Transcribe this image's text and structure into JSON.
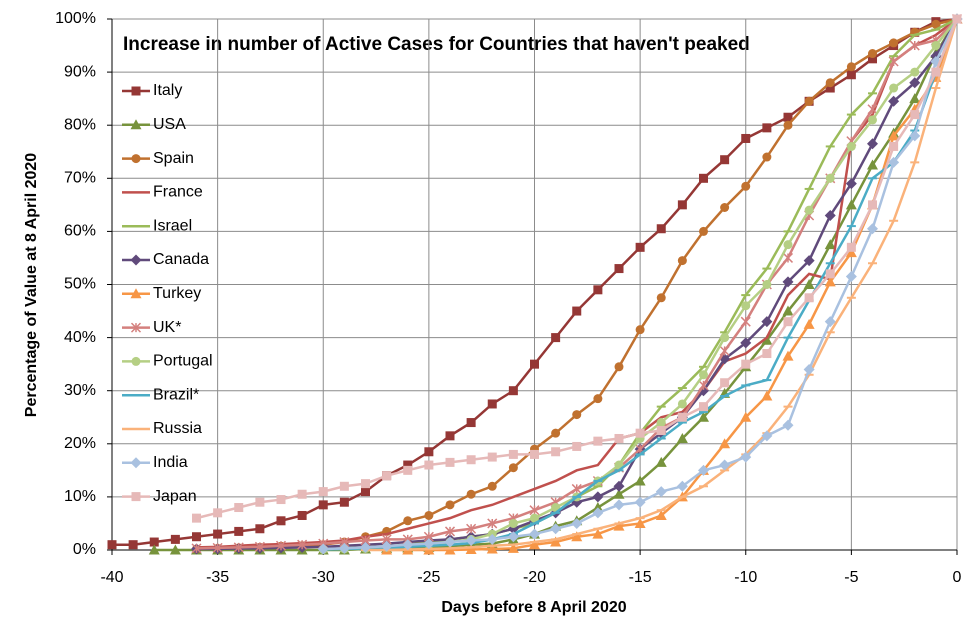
{
  "chart_data": {
    "type": "line",
    "title": "Increase in number of Active Cases for Countries that haven't peaked",
    "x_label": "Days before 8 April 2020",
    "y_label": "Percentage of Value at 8 April 2020",
    "grid": true,
    "legend": "upper left",
    "xlim": [
      -40,
      0
    ],
    "xticks": [
      -40,
      -35,
      -30,
      -25,
      -20,
      -15,
      -10,
      -5,
      0
    ],
    "ylim": [
      0,
      100
    ],
    "yticks": [
      {
        "value": 0,
        "label": "0%"
      },
      {
        "value": 10,
        "label": "10%"
      },
      {
        "value": 20,
        "label": "20%"
      },
      {
        "value": 30,
        "label": "30%"
      },
      {
        "value": 40,
        "label": "40%"
      },
      {
        "value": 50,
        "label": "50%"
      },
      {
        "value": 60,
        "label": "60%"
      },
      {
        "value": 70,
        "label": "70%"
      },
      {
        "value": 80,
        "label": "80%"
      },
      {
        "value": 90,
        "label": "90%"
      },
      {
        "value": 100,
        "label": "100%"
      }
    ],
    "x": [
      -40,
      -39,
      -38,
      -37,
      -36,
      -35,
      -34,
      -33,
      -32,
      -31,
      -30,
      -29,
      -28,
      -27,
      -26,
      -25,
      -24,
      -23,
      -22,
      -21,
      -20,
      -19,
      -18,
      -17,
      -16,
      -15,
      -14,
      -13,
      -12,
      -11,
      -10,
      -9,
      -8,
      -7,
      -6,
      -5,
      -4,
      -3,
      -2,
      -1,
      0
    ],
    "series": [
      {
        "name": "Italy",
        "color": "#953735",
        "marker": "square",
        "values": [
          1,
          1,
          1.5,
          2,
          2.5,
          3,
          3.5,
          4,
          5.5,
          6.5,
          8.5,
          9,
          11,
          14,
          16,
          18.5,
          21.5,
          24,
          27.5,
          30,
          35,
          40,
          45,
          49,
          53,
          57,
          60.5,
          65,
          70,
          73.5,
          77.5,
          79.5,
          81.5,
          84.5,
          87,
          89.5,
          92.5,
          95,
          97.5,
          99.5,
          100
        ]
      },
      {
        "name": "USA",
        "color": "#77933c",
        "marker": "triangle",
        "values": [
          null,
          null,
          0,
          0,
          0,
          0,
          0,
          0,
          0,
          0,
          0,
          0,
          0.2,
          0.3,
          0.4,
          0.5,
          0.7,
          1,
          1.2,
          2,
          3,
          4.5,
          5.5,
          8,
          10.5,
          13,
          16.5,
          21,
          25,
          29.5,
          34.5,
          39.5,
          45,
          50,
          57.5,
          65,
          72.5,
          78.5,
          85,
          93.5,
          100
        ]
      },
      {
        "name": "Spain",
        "color": "#c0712f",
        "marker": "circle",
        "values": [
          null,
          null,
          null,
          null,
          0.2,
          0.3,
          0.4,
          0.5,
          0.7,
          0.8,
          1,
          1.5,
          2.5,
          3.5,
          5.5,
          6.5,
          8.5,
          10.5,
          12,
          15.5,
          19,
          22,
          25.5,
          28.5,
          34.5,
          41.5,
          47.5,
          54.5,
          60,
          64.5,
          68.5,
          74,
          80,
          84.5,
          88,
          91,
          93.5,
          95.5,
          97.5,
          99,
          100
        ]
      },
      {
        "name": "France",
        "color": "#c0504d",
        "marker": "none",
        "values": [
          null,
          null,
          null,
          null,
          0.5,
          0.6,
          0.8,
          1,
          1.1,
          1.3,
          1.5,
          1.8,
          2.5,
          3,
          4,
          5,
          6,
          7.5,
          8.5,
          10,
          11.5,
          13,
          15,
          16,
          21,
          22,
          25,
          26,
          30,
          35.5,
          37,
          40,
          48,
          52,
          51,
          77,
          82,
          92,
          95,
          97,
          100
        ]
      },
      {
        "name": "Israel",
        "color": "#9bbb59",
        "marker": "dash",
        "values": [
          null,
          null,
          null,
          null,
          null,
          null,
          null,
          null,
          null,
          null,
          0.2,
          0.3,
          0.5,
          0.7,
          1,
          1.5,
          2,
          2.5,
          3,
          4,
          5,
          7,
          10,
          12,
          16,
          22,
          27,
          30.5,
          34.5,
          41,
          48,
          53,
          60,
          68,
          76,
          82,
          86,
          93,
          97,
          98,
          100
        ]
      },
      {
        "name": "Canada",
        "color": "#604a7b",
        "marker": "diamond",
        "values": [
          null,
          null,
          null,
          null,
          0.2,
          0.2,
          0.3,
          0.3,
          0.4,
          0.5,
          0.6,
          0.8,
          1,
          1.2,
          1.5,
          1.8,
          2,
          2.5,
          3,
          4,
          5.5,
          7,
          9,
          10,
          12,
          19,
          22,
          25,
          30,
          36,
          39,
          43,
          50.5,
          54.5,
          63,
          69,
          76.5,
          84.5,
          88,
          93,
          100
        ]
      },
      {
        "name": "Turkey",
        "color": "#f79646",
        "marker": "triangle",
        "values": [
          null,
          null,
          null,
          null,
          null,
          null,
          null,
          null,
          null,
          null,
          null,
          null,
          null,
          0,
          0,
          0,
          0,
          0.1,
          0.2,
          0.3,
          1,
          1.5,
          2.5,
          3,
          4.5,
          5,
          6.5,
          10,
          15,
          20,
          25,
          29,
          36.5,
          42.5,
          50.5,
          56,
          65,
          78,
          83,
          89,
          100
        ]
      },
      {
        "name": "UK*",
        "color": "#d4807e",
        "marker": "star",
        "values": [
          null,
          null,
          null,
          null,
          0.3,
          0.4,
          0.5,
          0.6,
          0.8,
          1,
          1.2,
          1.5,
          1.8,
          2,
          2,
          2.5,
          3.5,
          4,
          5,
          6,
          7.5,
          9,
          11.5,
          13,
          15.5,
          19,
          23,
          25,
          31,
          37.5,
          43,
          50,
          55,
          63,
          70,
          77,
          83,
          92,
          95,
          96,
          100
        ]
      },
      {
        "name": "Portugal",
        "color": "#b5cf84",
        "marker": "circle",
        "values": [
          null,
          null,
          null,
          null,
          null,
          null,
          null,
          null,
          null,
          null,
          0.1,
          0.2,
          0.3,
          0.5,
          0.7,
          1,
          1.5,
          2,
          3,
          5,
          6,
          8,
          10,
          13,
          16,
          21,
          24,
          27.5,
          33,
          40,
          46,
          50,
          57.5,
          64,
          70,
          76,
          81,
          87,
          90,
          95,
          100
        ]
      },
      {
        "name": "Brazil*",
        "color": "#4bacc6",
        "marker": "dash",
        "values": [
          null,
          null,
          null,
          null,
          null,
          null,
          null,
          null,
          null,
          null,
          0.1,
          0.2,
          0.3,
          0.4,
          0.6,
          0.8,
          1,
          1.3,
          2,
          3,
          5,
          7,
          10,
          13,
          15,
          18,
          21,
          24,
          26,
          29,
          31,
          32,
          40,
          47,
          54,
          61,
          70,
          73,
          79,
          90,
          100
        ]
      },
      {
        "name": "Russia",
        "color": "#fab27a",
        "marker": "dash",
        "values": [
          null,
          null,
          null,
          null,
          null,
          null,
          null,
          null,
          null,
          null,
          null,
          null,
          0,
          0,
          0.1,
          0.2,
          0.3,
          0.5,
          0.8,
          1,
          1.5,
          2,
          3,
          4,
          5,
          6,
          7.5,
          10,
          12,
          15,
          18,
          22,
          27,
          33,
          41,
          47.5,
          54,
          62,
          73,
          87,
          100
        ]
      },
      {
        "name": "India",
        "color": "#a9c1e0",
        "marker": "diamond",
        "values": [
          null,
          null,
          null,
          null,
          null,
          null,
          null,
          null,
          null,
          null,
          0.2,
          0.3,
          0.5,
          0.7,
          1,
          1.2,
          1.5,
          1.8,
          2,
          2.5,
          3,
          4,
          5,
          7,
          8.5,
          9,
          11,
          12,
          15,
          16,
          17.5,
          21.5,
          23.5,
          34,
          43,
          51.5,
          60.5,
          73,
          78,
          92,
          100
        ]
      },
      {
        "name": "Japan",
        "color": "#e6b9b8",
        "marker": "square",
        "values": [
          null,
          null,
          null,
          null,
          6,
          7,
          8,
          9,
          9.5,
          10.5,
          11,
          12,
          12.5,
          14,
          15,
          16,
          16.5,
          17,
          17.5,
          18,
          18,
          18.5,
          19.5,
          20.5,
          21,
          22,
          22.5,
          25,
          27,
          31.5,
          35,
          37,
          43,
          47.5,
          52,
          57,
          65,
          76,
          82,
          90,
          100
        ]
      }
    ]
  }
}
